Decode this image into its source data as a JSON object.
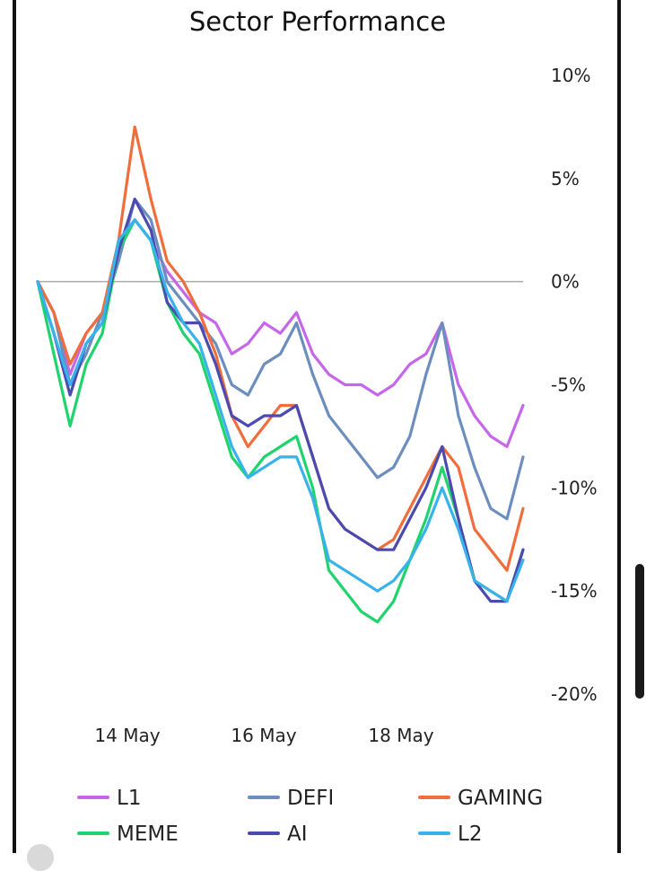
{
  "chart_data": {
    "type": "line",
    "title": "Sector Performance",
    "x_ticks": [
      "14 May",
      "16 May",
      "18 May"
    ],
    "y_ticks": [
      "10%",
      "5%",
      "0%",
      "-5%",
      "-10%",
      "-15%",
      "-20%"
    ],
    "y_tick_values": [
      10,
      5,
      0,
      -5,
      -10,
      -15,
      -20
    ],
    "ylim": [
      -20,
      10
    ],
    "y_axis_position": "right",
    "zero_line": true,
    "grid": false,
    "legend_position": "bottom",
    "x": [
      "12 May 12:00",
      "12 May 18:00",
      "13 May 00:00",
      "13 May 06:00",
      "13 May 12:00",
      "13 May 18:00",
      "14 May 00:00",
      "14 May 06:00",
      "14 May 12:00",
      "14 May 18:00",
      "15 May 00:00",
      "15 May 06:00",
      "15 May 12:00",
      "15 May 18:00",
      "16 May 00:00",
      "16 May 06:00",
      "16 May 12:00",
      "16 May 18:00",
      "17 May 00:00",
      "17 May 06:00",
      "17 May 12:00",
      "17 May 18:00",
      "18 May 00:00",
      "18 May 06:00",
      "18 May 12:00",
      "18 May 18:00",
      "19 May 00:00",
      "19 May 06:00",
      "19 May 12:00",
      "19 May 18:00",
      "20 May 00:00"
    ],
    "series": [
      {
        "name": "L1",
        "color": "#c567e8",
        "values": [
          0,
          -1.5,
          -4.5,
          -2.5,
          -1.5,
          1.5,
          3,
          2,
          0.5,
          -0.5,
          -1.5,
          -2,
          -3.5,
          -3,
          -2,
          -2.5,
          -1.5,
          -3.5,
          -4.5,
          -5,
          -5,
          -5.5,
          -5,
          -4,
          -3.5,
          -2,
          -5,
          -6.5,
          -7.5,
          -8,
          -6
        ]
      },
      {
        "name": "DEFI",
        "color": "#6c8ebf",
        "values": [
          0,
          -1.5,
          -5,
          -3.5,
          -1.5,
          1,
          4,
          3,
          0,
          -1,
          -2,
          -3,
          -5,
          -5.5,
          -4,
          -3.5,
          -2,
          -4.5,
          -6.5,
          -7.5,
          -8.5,
          -9.5,
          -9,
          -7.5,
          -4.5,
          -2,
          -6.5,
          -9,
          -11,
          -11.5,
          -8.5
        ]
      },
      {
        "name": "GAMING",
        "color": "#f06e3c",
        "values": [
          0,
          -1.5,
          -4,
          -2.5,
          -1.5,
          2,
          7.5,
          4,
          1,
          0,
          -1.5,
          -3.5,
          -6.5,
          -8,
          -7,
          -6,
          -6,
          -8.5,
          -11,
          -12,
          -12.5,
          -13,
          -12.5,
          -11,
          -9.5,
          -8,
          -9,
          -12,
          -13,
          -14,
          -11
        ]
      },
      {
        "name": "MEME",
        "color": "#1fd46c",
        "values": [
          0,
          -3.5,
          -7,
          -4,
          -2.5,
          1.5,
          3,
          2,
          -1,
          -2.5,
          -3.5,
          -6,
          -8.5,
          -9.5,
          -8.5,
          -8,
          -7.5,
          -10,
          -14,
          -15,
          -16,
          -16.5,
          -15.5,
          -13.5,
          -11.5,
          -9,
          -11.5,
          -14.5,
          -15,
          -15.5,
          -13
        ]
      },
      {
        "name": "AI",
        "color": "#4b4ab0",
        "values": [
          0,
          -2.5,
          -5.5,
          -3,
          -2,
          1.5,
          4,
          2.5,
          -1,
          -2,
          -2,
          -4,
          -6.5,
          -7,
          -6.5,
          -6.5,
          -6,
          -8.5,
          -11,
          -12,
          -12.5,
          -13,
          -13,
          -11.5,
          -10,
          -8,
          -11.5,
          -14.5,
          -15.5,
          -15.5,
          -13
        ]
      },
      {
        "name": "L2",
        "color": "#38b2ea",
        "values": [
          0,
          -2.5,
          -5,
          -3,
          -2,
          2,
          3,
          2,
          -0.5,
          -2,
          -3,
          -5.5,
          -8,
          -9.5,
          -9,
          -8.5,
          -8.5,
          -10.5,
          -13.5,
          -14,
          -14.5,
          -15,
          -14.5,
          -13.5,
          -12,
          -10,
          -12,
          -14.5,
          -15,
          -15.5,
          -13.5
        ]
      }
    ]
  }
}
